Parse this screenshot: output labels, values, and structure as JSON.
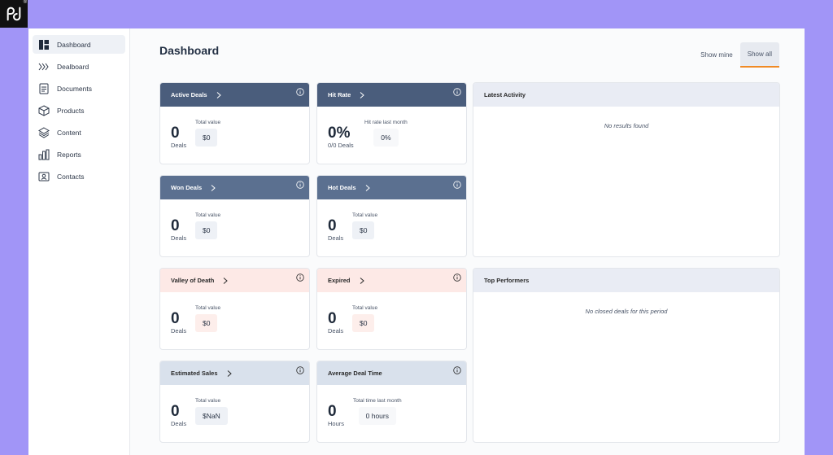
{
  "sidebar": {
    "items": [
      {
        "label": "Dashboard",
        "icon": "dashboard-icon"
      },
      {
        "label": "Dealboard",
        "icon": "dealboard-icon"
      },
      {
        "label": "Documents",
        "icon": "document-icon"
      },
      {
        "label": "Products",
        "icon": "box-icon"
      },
      {
        "label": "Content",
        "icon": "layers-icon"
      },
      {
        "label": "Reports",
        "icon": "bar-chart-icon"
      },
      {
        "label": "Contacts",
        "icon": "contact-card-icon"
      }
    ]
  },
  "header": {
    "title": "Dashboard",
    "toggle": {
      "mine": "Show mine",
      "all": "Show all"
    }
  },
  "cards": {
    "active_deals": {
      "title": "Active Deals",
      "value": "0",
      "unit": "Deals",
      "sub_label": "Total value",
      "sub_value": "$0"
    },
    "hit_rate": {
      "title": "Hit Rate",
      "value": "0%",
      "unit": "0/0 Deals",
      "sub_label": "Hit rate last month",
      "sub_value": "0%"
    },
    "won_deals": {
      "title": "Won Deals",
      "value": "0",
      "unit": "Deals",
      "sub_label": "Total value",
      "sub_value": "$0"
    },
    "hot_deals": {
      "title": "Hot Deals",
      "value": "0",
      "unit": "Deals",
      "sub_label": "Total value",
      "sub_value": "$0"
    },
    "valley_of_death": {
      "title": "Valley of Death",
      "value": "0",
      "unit": "Deals",
      "sub_label": "Total value",
      "sub_value": "$0"
    },
    "expired": {
      "title": "Expired",
      "value": "0",
      "unit": "Deals",
      "sub_label": "Total value",
      "sub_value": "$0"
    },
    "estimated_sales": {
      "title": "Estimated Sales",
      "value": "0",
      "unit": "Deals",
      "sub_label": "Total value",
      "sub_value": "$NaN"
    },
    "average_deal_time": {
      "title": "Average Deal Time",
      "value": "0",
      "unit": "Hours",
      "sub_label": "Total time last month",
      "sub_value": "0 hours"
    }
  },
  "panels": {
    "latest_activity": {
      "title": "Latest Activity",
      "empty": "No results found"
    },
    "top_performers": {
      "title": "Top Performers",
      "empty": "No closed deals for this period"
    }
  },
  "colors": {
    "background": "#a195f7",
    "header_dark": "#4a5d7c",
    "header_mid": "#5b7090",
    "header_pink": "#fde9e6",
    "header_light": "#d9e1ec",
    "accent": "#f08a24"
  }
}
